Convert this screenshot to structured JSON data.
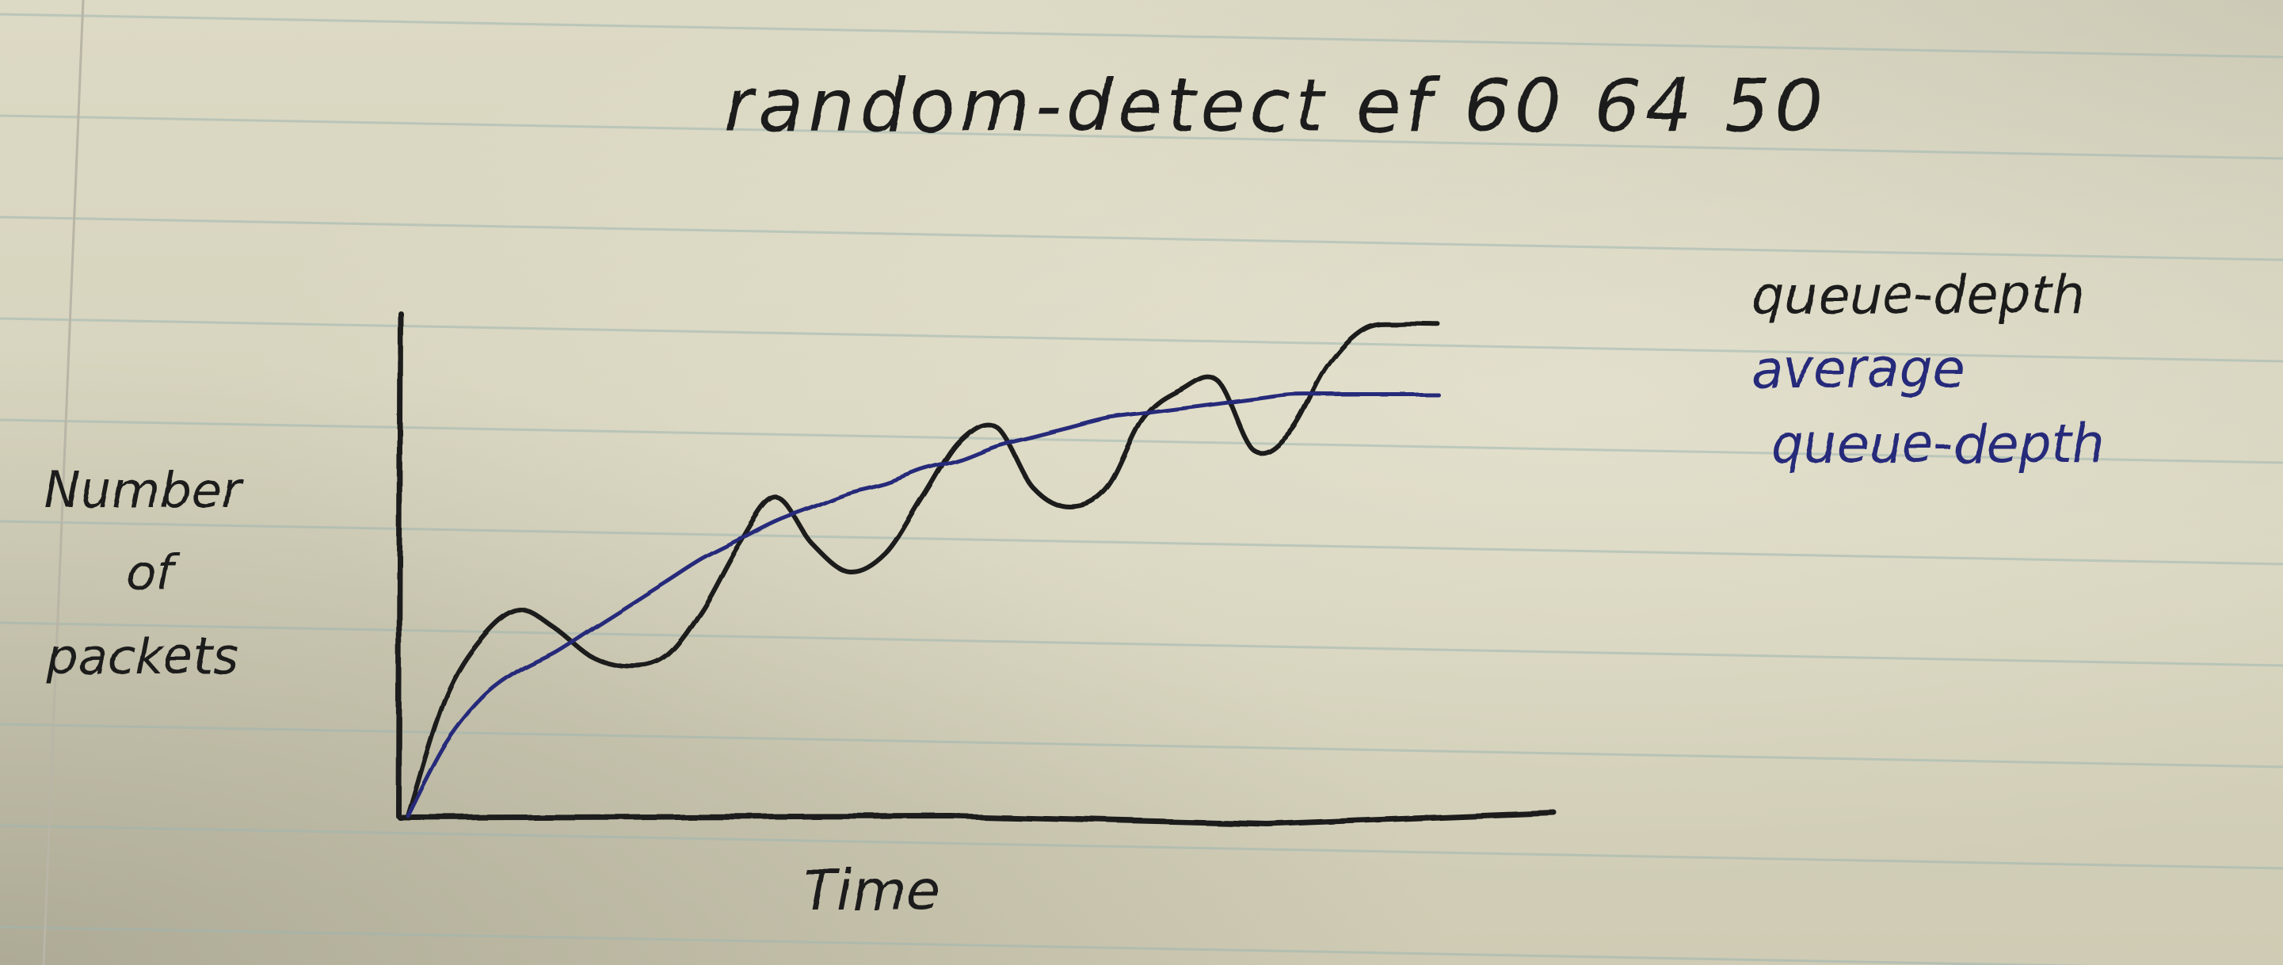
{
  "chart_data": {
    "type": "line",
    "title": "random-detect ef 60 64 50",
    "xlabel": "Time",
    "ylabel": "Number of packets",
    "grid": false,
    "legend": "right",
    "x": [
      0,
      4,
      8,
      12,
      16,
      20,
      24,
      28,
      32,
      36,
      40,
      44,
      48,
      52,
      56,
      60,
      64,
      68,
      72,
      76,
      80,
      84,
      88,
      92,
      96,
      100,
      104,
      108,
      112
    ],
    "series": [
      {
        "name": "queue-depth",
        "color": "#1d1d1b",
        "values": [
          0,
          25,
          38,
          44,
          40,
          34,
          32,
          34,
          44,
          58,
          68,
          58,
          52,
          56,
          68,
          80,
          83,
          70,
          66,
          70,
          85,
          91,
          93,
          78,
          82,
          96,
          104,
          105,
          105
        ]
      },
      {
        "name": "average\nqueue-depth",
        "color": "#28297a",
        "values": [
          0,
          15,
          25,
          31,
          35,
          40,
          45,
          50,
          55,
          59,
          63,
          66,
          69,
          71,
          74,
          76,
          79,
          81,
          83,
          85,
          86,
          87,
          88,
          89,
          90,
          90,
          90,
          90,
          90
        ]
      }
    ],
    "xlim": [
      0,
      140
    ],
    "ylim": [
      0,
      120
    ]
  },
  "icons": {
    "ruled-line-color": "#9fb7b0",
    "margin-line-color": "#b9b5a7"
  }
}
